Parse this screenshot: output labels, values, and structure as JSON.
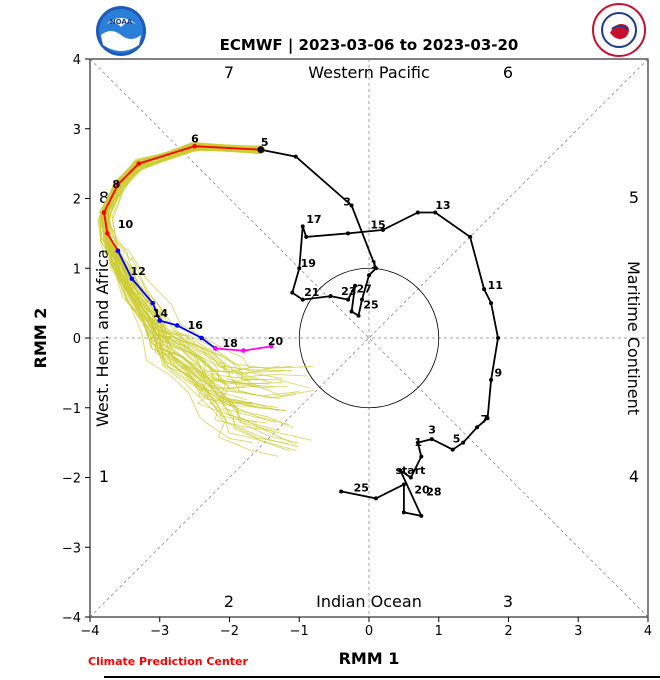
{
  "chart_data": {
    "type": "line",
    "title": "ECMWF | 2023-03-06 to 2023-03-20",
    "xlabel": "RMM 1",
    "ylabel": "RMM 2",
    "xlim": [
      -4,
      4
    ],
    "ylim": [
      -4,
      4
    ],
    "xticks": [
      "−4",
      "−3",
      "−2",
      "−1",
      "0",
      "1",
      "2",
      "3",
      "4"
    ],
    "yticks": [
      "−4",
      "−3",
      "−2",
      "−1",
      "0",
      "1",
      "2",
      "3",
      "4"
    ],
    "grid": "dashed diagonals and zero lines",
    "phase_numbers": [
      "1",
      "2",
      "3",
      "4",
      "5",
      "6",
      "7",
      "8"
    ],
    "region_labels": {
      "top": "Western Pacific",
      "bottom": "Indian Ocean",
      "left": "West. Hem. and Africa",
      "right": "Maritime Continent"
    },
    "observed": {
      "color": "#000000",
      "points": [
        [
          -0.4,
          -2.2
        ],
        [
          0.1,
          -2.3
        ],
        [
          0.5,
          -2.1
        ],
        [
          0.5,
          -2.5
        ],
        [
          0.75,
          -2.55
        ],
        [
          0.45,
          -1.9
        ],
        [
          0.6,
          -2.0
        ],
        [
          0.75,
          -1.7
        ],
        [
          0.7,
          -1.5
        ],
        [
          0.9,
          -1.45
        ],
        [
          1.2,
          -1.6
        ],
        [
          1.35,
          -1.5
        ],
        [
          1.55,
          -1.28
        ],
        [
          1.7,
          -1.15
        ],
        [
          1.75,
          -0.6
        ],
        [
          1.85,
          0.0
        ],
        [
          1.75,
          0.5
        ],
        [
          1.65,
          0.7
        ],
        [
          1.45,
          1.45
        ],
        [
          0.95,
          1.8
        ],
        [
          0.7,
          1.8
        ],
        [
          0.2,
          1.55
        ],
        [
          -0.3,
          1.5
        ],
        [
          -0.9,
          1.45
        ],
        [
          -0.95,
          1.6
        ],
        [
          -1.0,
          1.0
        ],
        [
          -1.1,
          0.65
        ],
        [
          -0.95,
          0.55
        ],
        [
          -0.55,
          0.6
        ],
        [
          -0.3,
          0.55
        ],
        [
          -0.2,
          0.75
        ],
        [
          -0.25,
          0.38
        ],
        [
          -0.15,
          0.32
        ],
        [
          -0.1,
          0.55
        ],
        [
          0.0,
          0.9
        ],
        [
          0.1,
          1.0
        ],
        [
          -0.25,
          1.9
        ],
        [
          -1.05,
          2.6
        ],
        [
          -1.55,
          2.7
        ]
      ],
      "labels": [
        {
          "text": "start",
          "x": 0.38,
          "y": -1.95
        },
        {
          "text": "25",
          "x": -0.22,
          "y": -2.2
        },
        {
          "text": "20",
          "x": 0.65,
          "y": -2.23
        },
        {
          "text": "28",
          "x": 0.82,
          "y": -2.26
        },
        {
          "text": "3",
          "x": 0.85,
          "y": -1.37
        },
        {
          "text": "1",
          "x": 0.65,
          "y": -1.55
        },
        {
          "text": "5",
          "x": 1.2,
          "y": -1.5
        },
        {
          "text": "7",
          "x": 1.6,
          "y": -1.22
        },
        {
          "text": "9",
          "x": 1.8,
          "y": -0.55
        },
        {
          "text": "11",
          "x": 1.7,
          "y": 0.7
        },
        {
          "text": "13",
          "x": 0.95,
          "y": 1.85
        },
        {
          "text": "15",
          "x": 0.02,
          "y": 1.57
        },
        {
          "text": "17",
          "x": -0.9,
          "y": 1.65
        },
        {
          "text": "19",
          "x": -0.98,
          "y": 1.02
        },
        {
          "text": "21",
          "x": -0.93,
          "y": 0.6
        },
        {
          "text": "23",
          "x": -0.4,
          "y": 0.62
        },
        {
          "text": "27",
          "x": -0.18,
          "y": 0.65
        },
        {
          "text": "25",
          "x": -0.08,
          "y": 0.42
        },
        {
          "text": "1",
          "x": 0.02,
          "y": 1.0
        },
        {
          "text": "3",
          "x": -0.37,
          "y": 1.9
        },
        {
          "text": "5",
          "x": -1.55,
          "y": 2.75
        }
      ]
    },
    "forecast": {
      "segments": [
        {
          "color": "#ff0000",
          "points": [
            [
              -1.55,
              2.7
            ],
            [
              -2.5,
              2.75
            ],
            [
              -3.3,
              2.5
            ],
            [
              -3.6,
              2.2
            ],
            [
              -3.8,
              1.8
            ],
            [
              -3.75,
              1.5
            ],
            [
              -3.6,
              1.25
            ]
          ]
        },
        {
          "color": "#0000ff",
          "points": [
            [
              -3.6,
              1.25
            ],
            [
              -3.4,
              0.85
            ],
            [
              -3.1,
              0.5
            ],
            [
              -3.0,
              0.25
            ],
            [
              -2.75,
              0.18
            ],
            [
              -2.4,
              0.0
            ],
            [
              -2.2,
              -0.15
            ]
          ]
        },
        {
          "color": "#ff00ff",
          "points": [
            [
              -2.2,
              -0.15
            ],
            [
              -1.8,
              -0.18
            ],
            [
              -1.4,
              -0.12
            ]
          ]
        }
      ],
      "labels": [
        {
          "text": "6",
          "x": -2.55,
          "y": 2.8
        },
        {
          "text": "8",
          "x": -3.68,
          "y": 2.15
        },
        {
          "text": "10",
          "x": -3.6,
          "y": 1.58
        },
        {
          "text": "12",
          "x": -3.42,
          "y": 0.9
        },
        {
          "text": "14",
          "x": -3.1,
          "y": 0.3
        },
        {
          "text": "16",
          "x": -2.6,
          "y": 0.13
        },
        {
          "text": "18",
          "x": -2.1,
          "y": -0.13
        },
        {
          "text": "20",
          "x": -1.45,
          "y": -0.1
        }
      ]
    },
    "ensemble": {
      "color": "#cccc33",
      "description": "ensemble member forecast tracks"
    }
  },
  "footer": {
    "credit": "Climate Prediction Center"
  },
  "logos": {
    "left": "noaa-logo",
    "right": "national-weather-service-logo"
  }
}
